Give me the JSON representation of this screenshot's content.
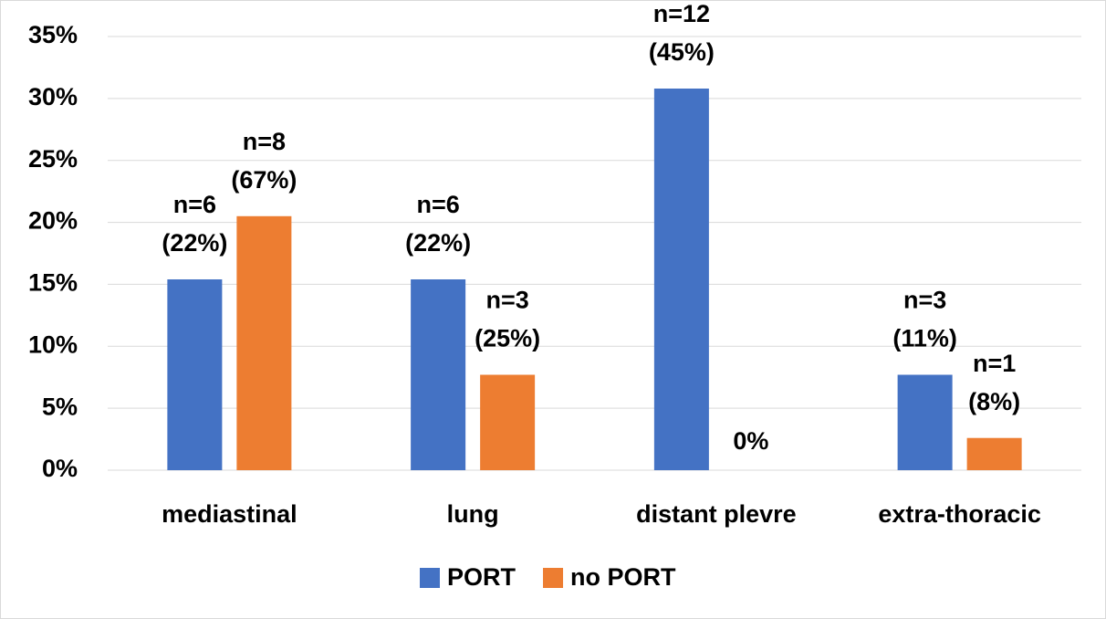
{
  "chart_data": {
    "type": "bar",
    "categories": [
      "mediastinal",
      "lung",
      "distant plevre",
      "extra-thoracic"
    ],
    "series": [
      {
        "name": "PORT",
        "color": "#4472c4",
        "values": [
          15.4,
          15.4,
          30.8,
          7.7
        ],
        "annotations": [
          [
            "n=6",
            "(22%)"
          ],
          [
            "n=6",
            "(22%)"
          ],
          [
            "n=12",
            "(45%)"
          ],
          [
            "n=3",
            "(11%)"
          ]
        ]
      },
      {
        "name": "no PORT",
        "color": "#ed7d31",
        "values": [
          20.5,
          7.7,
          0,
          2.6
        ],
        "annotations": [
          [
            "n=8",
            "(67%)"
          ],
          [
            "n=3",
            "(25%)"
          ],
          [
            "0%"
          ],
          [
            "n=1",
            "(8%)"
          ]
        ]
      }
    ],
    "ylim": [
      0,
      35
    ],
    "yticks": [
      {
        "value": 0,
        "label": "0%"
      },
      {
        "value": 5,
        "label": "5%"
      },
      {
        "value": 10,
        "label": "10%"
      },
      {
        "value": 15,
        "label": "15%"
      },
      {
        "value": 20,
        "label": "20%"
      },
      {
        "value": 25,
        "label": "25%"
      },
      {
        "value": 30,
        "label": "30%"
      },
      {
        "value": 35,
        "label": "35%"
      }
    ],
    "grid": true,
    "legend": "bottom"
  }
}
